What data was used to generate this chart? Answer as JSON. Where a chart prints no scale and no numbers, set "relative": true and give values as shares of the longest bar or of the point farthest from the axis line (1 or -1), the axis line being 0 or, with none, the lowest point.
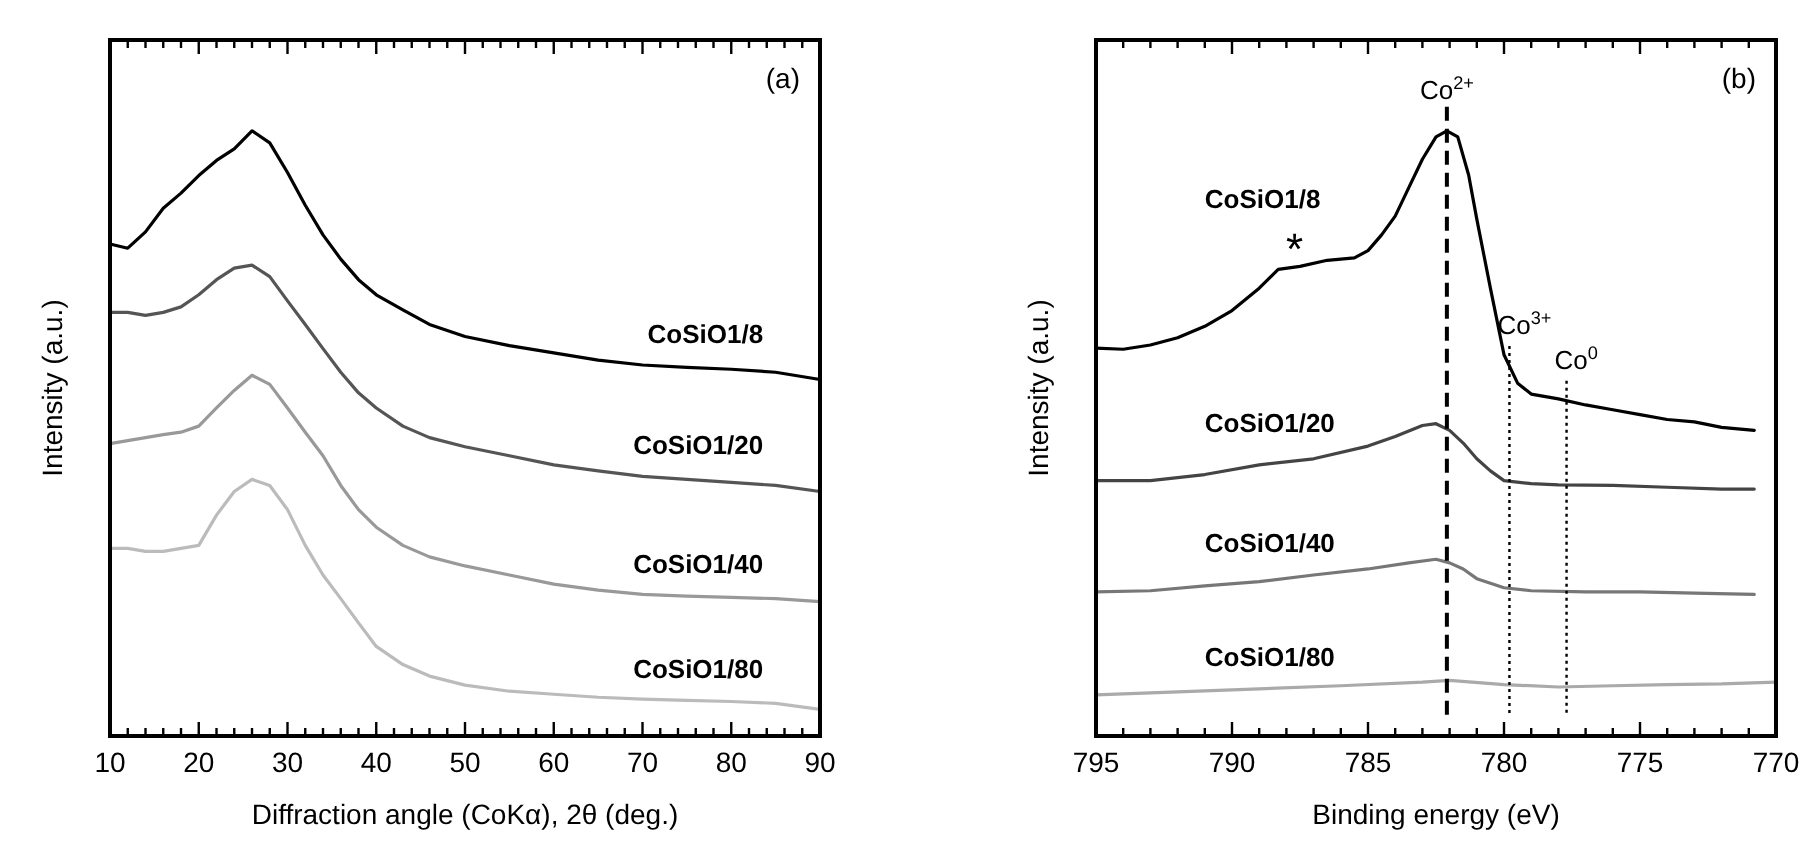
{
  "chart_data": [
    {
      "type": "line",
      "relative": true,
      "xlabel": "Diffraction angle (CoKα), 2θ (deg.)",
      "ylabel": "Intensity (a.u.)",
      "annotations": [
        "(a)"
      ],
      "xlim": [
        10,
        90
      ],
      "xticks": [
        10,
        {
          "value": 12,
          "label": null
        },
        {
          "value": 14,
          "label": null
        },
        {
          "value": 16,
          "label": null
        },
        {
          "value": 18,
          "label": null
        },
        20,
        {
          "value": 22,
          "label": null
        },
        {
          "value": 24,
          "label": null
        },
        {
          "value": 26,
          "label": null
        },
        {
          "value": 28,
          "label": null
        },
        30,
        {
          "value": 32,
          "label": null
        },
        {
          "value": 34,
          "label": null
        },
        {
          "value": 36,
          "label": null
        },
        {
          "value": 38,
          "label": null
        },
        40,
        {
          "value": 42,
          "label": null
        },
        {
          "value": 44,
          "label": null
        },
        {
          "value": 46,
          "label": null
        },
        {
          "value": 48,
          "label": null
        },
        50,
        {
          "value": 52,
          "label": null
        },
        {
          "value": 54,
          "label": null
        },
        {
          "value": 56,
          "label": null
        },
        {
          "value": 58,
          "label": null
        },
        60,
        {
          "value": 62,
          "label": null
        },
        {
          "value": 64,
          "label": null
        },
        {
          "value": 66,
          "label": null
        },
        {
          "value": 68,
          "label": null
        },
        70,
        {
          "value": 72,
          "label": null
        },
        {
          "value": 74,
          "label": null
        },
        {
          "value": 76,
          "label": null
        },
        {
          "value": 78,
          "label": null
        },
        80,
        {
          "value": 82,
          "label": null
        },
        {
          "value": 84,
          "label": null
        },
        {
          "value": 86,
          "label": null
        },
        {
          "value": 88,
          "label": null
        },
        90
      ],
      "tick_labels": "x",
      "grid": false,
      "legend": false,
      "marker": "none",
      "line_style": "solid",
      "x": [
        10,
        12,
        14,
        16,
        18,
        20,
        22,
        24,
        26,
        28,
        30,
        32,
        34,
        36,
        38,
        40,
        43,
        46,
        50,
        55,
        60,
        65,
        70,
        75,
        80,
        85,
        90
      ],
      "series": [
        {
          "name": "CoSiO1/8",
          "color": "#000000",
          "values": [
            0.813,
            0.806,
            0.833,
            0.872,
            0.897,
            0.926,
            0.951,
            0.97,
            1.0,
            0.98,
            0.931,
            0.877,
            0.828,
            0.788,
            0.754,
            0.729,
            0.704,
            0.68,
            0.66,
            0.645,
            0.633,
            0.621,
            0.613,
            0.609,
            0.606,
            0.601,
            0.589
          ]
        },
        {
          "name": "CoSiO1/20",
          "color": "#555555",
          "values": [
            0.7,
            0.7,
            0.695,
            0.7,
            0.709,
            0.729,
            0.754,
            0.773,
            0.778,
            0.759,
            0.719,
            0.68,
            0.64,
            0.601,
            0.567,
            0.542,
            0.512,
            0.493,
            0.478,
            0.463,
            0.448,
            0.438,
            0.429,
            0.424,
            0.419,
            0.414,
            0.404
          ]
        },
        {
          "name": "CoSiO1/40",
          "color": "#999999",
          "values": [
            0.483,
            0.488,
            0.493,
            0.498,
            0.502,
            0.512,
            0.542,
            0.571,
            0.596,
            0.581,
            0.542,
            0.502,
            0.463,
            0.414,
            0.374,
            0.345,
            0.315,
            0.296,
            0.281,
            0.266,
            0.251,
            0.241,
            0.234,
            0.231,
            0.229,
            0.227,
            0.222
          ]
        },
        {
          "name": "CoSiO1/80",
          "color": "#bbbbbb",
          "values": [
            0.31,
            0.31,
            0.305,
            0.305,
            0.31,
            0.315,
            0.365,
            0.404,
            0.424,
            0.414,
            0.374,
            0.315,
            0.266,
            0.227,
            0.187,
            0.148,
            0.118,
            0.099,
            0.084,
            0.074,
            0.069,
            0.064,
            0.061,
            0.059,
            0.057,
            0.054,
            0.044
          ]
        }
      ]
    },
    {
      "type": "line",
      "relative": true,
      "xlabel": "Binding energy (eV)",
      "ylabel": "Intensity (a.u.)",
      "xlim": [
        795,
        770
      ],
      "xticks": [
        795,
        {
          "value": 794,
          "label": null
        },
        {
          "value": 793,
          "label": null
        },
        {
          "value": 792,
          "label": null
        },
        {
          "value": 791,
          "label": null
        },
        790,
        {
          "value": 789,
          "label": null
        },
        {
          "value": 788,
          "label": null
        },
        {
          "value": 787,
          "label": null
        },
        {
          "value": 786,
          "label": null
        },
        785,
        {
          "value": 784,
          "label": null
        },
        {
          "value": 783,
          "label": null
        },
        {
          "value": 782,
          "label": null
        },
        {
          "value": 781,
          "label": null
        },
        780,
        {
          "value": 779,
          "label": null
        },
        {
          "value": 778,
          "label": null
        },
        {
          "value": 777,
          "label": null
        },
        {
          "value": 776,
          "label": null
        },
        775,
        {
          "value": 774,
          "label": null
        },
        {
          "value": 773,
          "label": null
        },
        {
          "value": 772,
          "label": null
        },
        {
          "value": 771,
          "label": null
        },
        770
      ],
      "tick_labels": "x",
      "grid": false,
      "legend": false,
      "marker": "none",
      "line_style": "solid",
      "annotations": [
        "(b)",
        {
          "text": "*",
          "x": 787.7,
          "y": 0.774
        }
      ],
      "ref_lines": [
        {
          "axis": "x",
          "value": 782.1,
          "label": "Co$^{2+}$",
          "line_style": "dashed",
          "color": "#000000"
        },
        {
          "axis": "x",
          "value": 779.8,
          "label": "Co$^{3+}$",
          "line_style": "dotted",
          "color": "#000000"
        },
        {
          "axis": "x",
          "value": 777.7,
          "label": "Co$^{0}$",
          "line_style": "dotted",
          "color": "#000000"
        }
      ],
      "series": [
        {
          "name": "CoSiO1/8",
          "color": "#000000",
          "x": [
            795,
            794,
            793,
            792,
            791,
            790,
            789,
            788.3,
            787.5,
            786.5,
            785.5,
            785,
            784.5,
            784,
            783.5,
            783,
            782.5,
            782.1,
            781.7,
            781.3,
            781,
            780.5,
            780,
            779.5,
            779,
            778,
            777,
            776,
            775,
            774,
            773,
            772,
            770.8
          ],
          "values": [
            0.641,
            0.639,
            0.646,
            0.658,
            0.677,
            0.703,
            0.74,
            0.771,
            0.776,
            0.786,
            0.79,
            0.802,
            0.828,
            0.859,
            0.906,
            0.953,
            0.99,
            1.0,
            0.99,
            0.927,
            0.854,
            0.74,
            0.63,
            0.583,
            0.565,
            0.557,
            0.547,
            0.539,
            0.531,
            0.523,
            0.519,
            0.51,
            0.505
          ]
        },
        {
          "name": "CoSiO1/20",
          "color": "#444444",
          "x": [
            795,
            793,
            791,
            789,
            787,
            785,
            784,
            783,
            782.5,
            782,
            781.5,
            781,
            780.5,
            780,
            779,
            778,
            776,
            774,
            772,
            770.8
          ],
          "values": [
            0.422,
            0.422,
            0.432,
            0.448,
            0.458,
            0.479,
            0.495,
            0.513,
            0.516,
            0.505,
            0.484,
            0.458,
            0.438,
            0.422,
            0.417,
            0.415,
            0.414,
            0.411,
            0.408,
            0.408
          ]
        },
        {
          "name": "CoSiO1/40",
          "color": "#777777",
          "x": [
            795,
            793,
            791,
            789,
            787,
            785,
            783.5,
            782.5,
            782,
            781.5,
            781,
            780,
            779,
            777,
            775,
            773,
            770.8
          ],
          "values": [
            0.238,
            0.24,
            0.248,
            0.255,
            0.266,
            0.276,
            0.286,
            0.292,
            0.286,
            0.276,
            0.26,
            0.245,
            0.24,
            0.238,
            0.238,
            0.236,
            0.234
          ]
        },
        {
          "name": "CoSiO1/80",
          "color": "#aaaaaa",
          "x": [
            795,
            792,
            789,
            786,
            783,
            782,
            780,
            778,
            776,
            774,
            772,
            770
          ],
          "values": [
            0.068,
            0.073,
            0.078,
            0.083,
            0.089,
            0.092,
            0.085,
            0.081,
            0.083,
            0.085,
            0.086,
            0.089
          ]
        }
      ]
    }
  ]
}
